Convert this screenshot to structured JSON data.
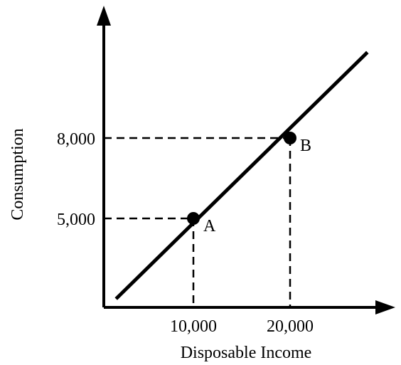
{
  "chart_data": {
    "type": "line",
    "xlabel": "Disposable Income",
    "ylabel": "Consumption",
    "x_ticks": [
      {
        "value": 10000,
        "label": "10,000"
      },
      {
        "value": 20000,
        "label": "20,000"
      }
    ],
    "y_ticks": [
      {
        "value": 5000,
        "label": "5,000"
      },
      {
        "value": 8000,
        "label": "8,000"
      }
    ],
    "series": [
      {
        "points": [
          {
            "x": 2000,
            "y": 2000
          },
          {
            "x": 28000,
            "y": 11200
          }
        ]
      }
    ],
    "highlighted_points": [
      {
        "label": "A",
        "x": 10000,
        "y": 5000
      },
      {
        "label": "B",
        "x": 20000,
        "y": 8000
      }
    ],
    "xlim": [
      0,
      30000
    ],
    "ylim": [
      0,
      12000
    ],
    "grid": false,
    "colors": {
      "line": "#000000",
      "point": "#000000",
      "guide": "#000000"
    }
  }
}
